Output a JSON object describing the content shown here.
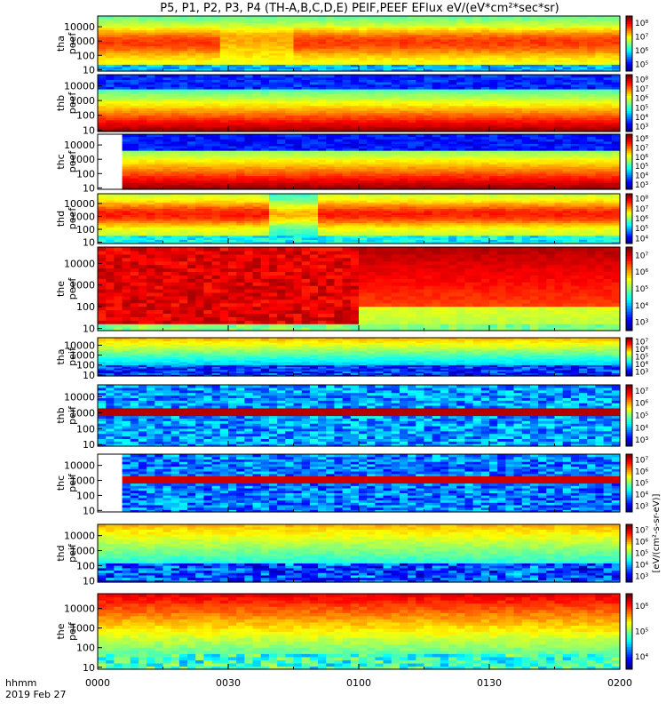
{
  "title": "P5, P1, P2, P3, P4 (TH-A,B,C,D,E) PEIF,PEEF EFlux eV/(eV*cm²*sec*sr)",
  "time_axis": {
    "label_line1": "hhmm",
    "label_line2": "2019 Feb 27",
    "ticks": [
      "0000",
      "0030",
      "0100",
      "0130",
      "0200"
    ]
  },
  "colorbar_units_label": "[eV/(cm²-s-sr-eV)]",
  "chart_data": [
    {
      "type": "heatmap",
      "label": [
        "tha",
        "peef"
      ],
      "yticks": [
        "10",
        "100",
        "1000",
        "10000"
      ],
      "colorbar": [
        "10⁵",
        "10⁶",
        "10⁷",
        "10⁸"
      ],
      "pattern": "peef_a"
    },
    {
      "type": "heatmap",
      "label": [
        "thb",
        "peef"
      ],
      "yticks": [
        "10",
        "100",
        "1000",
        "10000"
      ],
      "colorbar": [
        "10³",
        "10⁴",
        "10⁵",
        "10⁶",
        "10⁷",
        "10⁸"
      ],
      "pattern": "peef_b"
    },
    {
      "type": "heatmap",
      "label": [
        "thc",
        "peef"
      ],
      "yticks": [
        "10",
        "100",
        "1000",
        "10000"
      ],
      "colorbar": [
        "10³",
        "10⁴",
        "10⁵",
        "10⁶",
        "10⁷",
        "10⁸"
      ],
      "pattern": "peef_c"
    },
    {
      "type": "heatmap",
      "label": [
        "thd",
        "peef"
      ],
      "yticks": [
        "10",
        "100",
        "1000",
        "10000"
      ],
      "colorbar": [
        "10⁴",
        "10⁵",
        "10⁶",
        "10⁷",
        "10⁸"
      ],
      "pattern": "peef_d"
    },
    {
      "type": "heatmap",
      "label": [
        "the",
        "peef"
      ],
      "yticks": [
        "10",
        "100",
        "1000",
        "10000"
      ],
      "colorbar": [
        "10³",
        "10⁴",
        "10⁵",
        "10⁶",
        "10⁷"
      ],
      "pattern": "peef_e"
    },
    {
      "type": "heatmap",
      "label": [
        "tha",
        "peif"
      ],
      "yticks": [
        "10",
        "100",
        "1000",
        "10000"
      ],
      "colorbar": [
        "10³",
        "10⁴",
        "10⁵",
        "10⁶",
        "10⁷"
      ],
      "pattern": "peif_a"
    },
    {
      "type": "heatmap",
      "label": [
        "thb",
        "peif"
      ],
      "yticks": [
        "10",
        "100",
        "1000",
        "10000"
      ],
      "colorbar": [
        "10³",
        "10⁴",
        "10⁵",
        "10⁶",
        "10⁷"
      ],
      "pattern": "peif_b"
    },
    {
      "type": "heatmap",
      "label": [
        "thc",
        "peif"
      ],
      "yticks": [
        "10",
        "100",
        "1000",
        "10000"
      ],
      "colorbar": [
        "10³",
        "10⁴",
        "10⁵",
        "10⁶",
        "10⁷"
      ],
      "pattern": "peif_c"
    },
    {
      "type": "heatmap",
      "label": [
        "thd",
        "peif"
      ],
      "yticks": [
        "10",
        "100",
        "1000",
        "10000"
      ],
      "colorbar": [
        "10³",
        "10⁴",
        "10⁵",
        "10⁶",
        "10⁷"
      ],
      "pattern": "peif_d"
    },
    {
      "type": "heatmap",
      "label": [
        "the",
        "peif"
      ],
      "yticks": [
        "10",
        "100",
        "1000",
        "10000"
      ],
      "colorbar": [
        "10⁴",
        "10⁵",
        "10⁶"
      ],
      "pattern": "peif_e"
    }
  ]
}
